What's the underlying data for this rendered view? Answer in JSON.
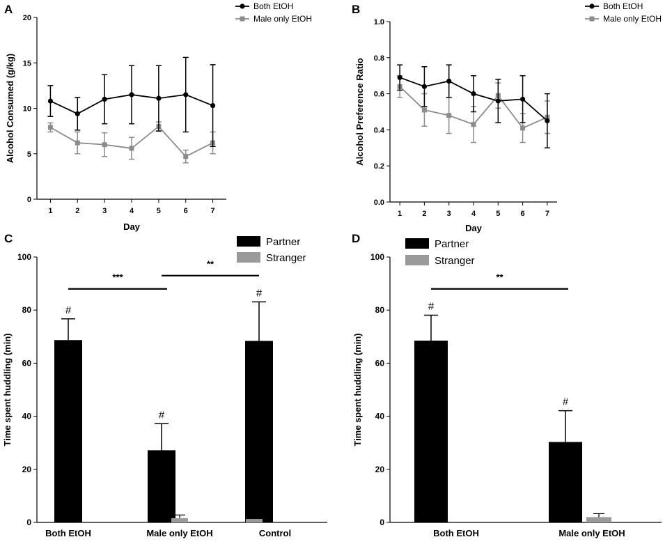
{
  "figure": {
    "panels": [
      "A",
      "B",
      "C",
      "D"
    ]
  },
  "colors": {
    "both": "#000000",
    "male_only": "#8c8c8c",
    "partner": "#000000",
    "stranger": "#9a9a9a",
    "axis": "#000000"
  },
  "chart_data": [
    {
      "panel": "A",
      "type": "line",
      "xlabel": "Day",
      "ylabel": "Alcohol Consumed (g/kg)",
      "x": [
        1,
        2,
        3,
        4,
        5,
        6,
        7
      ],
      "xticks": [
        "1",
        "2",
        "3",
        "4",
        "5",
        "6",
        "7"
      ],
      "ylim": [
        0,
        20
      ],
      "yticks": [
        "0",
        "5",
        "10",
        "15",
        "20"
      ],
      "ytick_values": [
        0,
        5,
        10,
        15,
        20
      ],
      "legend": "top-right",
      "series": [
        {
          "name": "Both EtOH",
          "marker": "circle",
          "color": "#000000",
          "values": [
            10.8,
            9.4,
            11.0,
            11.5,
            11.1,
            11.5,
            10.3
          ],
          "errors": [
            1.7,
            1.8,
            2.7,
            3.2,
            3.6,
            4.1,
            4.5
          ]
        },
        {
          "name": "Male only EtOH",
          "marker": "square",
          "color": "#8c8c8c",
          "values": [
            7.9,
            6.2,
            6.0,
            5.6,
            8.0,
            4.7,
            6.2
          ],
          "errors": [
            0.5,
            1.2,
            1.3,
            1.2,
            0.5,
            0.7,
            1.2
          ]
        }
      ]
    },
    {
      "panel": "B",
      "type": "line",
      "xlabel": "Day",
      "ylabel": "Alcohol Preference Ratio",
      "x": [
        1,
        2,
        3,
        4,
        5,
        6,
        7
      ],
      "xticks": [
        "1",
        "2",
        "3",
        "4",
        "5",
        "6",
        "7"
      ],
      "ylim": [
        0,
        1
      ],
      "yticks": [
        "0.0",
        "0.2",
        "0.4",
        "0.6",
        "0.8",
        "1.0"
      ],
      "ytick_values": [
        0,
        0.2,
        0.4,
        0.6,
        0.8,
        1.0
      ],
      "legend": "top-right",
      "series": [
        {
          "name": "Both EtOH",
          "marker": "circle",
          "color": "#000000",
          "values": [
            0.69,
            0.64,
            0.67,
            0.6,
            0.56,
            0.57,
            0.45
          ],
          "errors": [
            0.07,
            0.11,
            0.09,
            0.1,
            0.12,
            0.13,
            0.15
          ]
        },
        {
          "name": "Male only EtOH",
          "marker": "square",
          "color": "#8c8c8c",
          "values": [
            0.64,
            0.51,
            0.48,
            0.43,
            0.59,
            0.41,
            0.47
          ],
          "errors": [
            0.06,
            0.09,
            0.1,
            0.1,
            0.07,
            0.08,
            0.09
          ]
        }
      ]
    },
    {
      "panel": "C",
      "type": "bar",
      "xlabel": "",
      "ylabel": "Time spent huddling (min)",
      "categories": [
        "Both EtOH",
        "Male only EtOH",
        "Control"
      ],
      "ylim": [
        0,
        100
      ],
      "yticks": [
        "0",
        "20",
        "40",
        "60",
        "80",
        "100"
      ],
      "ytick_values": [
        0,
        20,
        40,
        60,
        80,
        100
      ],
      "legend": "top-right",
      "series": [
        {
          "name": "Partner",
          "color": "#000000",
          "values": [
            68.7,
            27.2,
            68.4
          ],
          "errors": [
            8.0,
            10.0,
            14.7
          ]
        },
        {
          "name": "Stranger",
          "color": "#9a9a9a",
          "values": [
            0,
            1.6,
            1.3
          ],
          "errors": [
            0,
            1.2,
            1.2
          ]
        }
      ],
      "annotations": {
        "hash": "#",
        "hash_bars": [
          0,
          1,
          2
        ],
        "brackets": [
          {
            "from": 0,
            "to": 1,
            "label": "***",
            "y": 88
          },
          {
            "from": 1,
            "to": 2,
            "label": "**",
            "y": 93
          }
        ]
      }
    },
    {
      "panel": "D",
      "type": "bar",
      "xlabel": "",
      "ylabel": "Time spent huddling (min)",
      "categories": [
        "Both EtOH",
        "Male only EtOH"
      ],
      "ylim": [
        0,
        100
      ],
      "yticks": [
        "0",
        "20",
        "40",
        "60",
        "80",
        "100"
      ],
      "ytick_values": [
        0,
        20,
        40,
        60,
        80,
        100
      ],
      "legend": "top-right",
      "series": [
        {
          "name": "Partner",
          "color": "#000000",
          "values": [
            68.5,
            30.3
          ],
          "errors": [
            9.6,
            11.8
          ]
        },
        {
          "name": "Stranger",
          "color": "#9a9a9a",
          "values": [
            0,
            2.0
          ],
          "errors": [
            0,
            1.3
          ]
        }
      ],
      "annotations": {
        "hash": "#",
        "hash_bars": [
          0,
          1
        ],
        "brackets": [
          {
            "from": 0,
            "to": 1,
            "label": "**",
            "y": 88
          }
        ]
      }
    }
  ]
}
